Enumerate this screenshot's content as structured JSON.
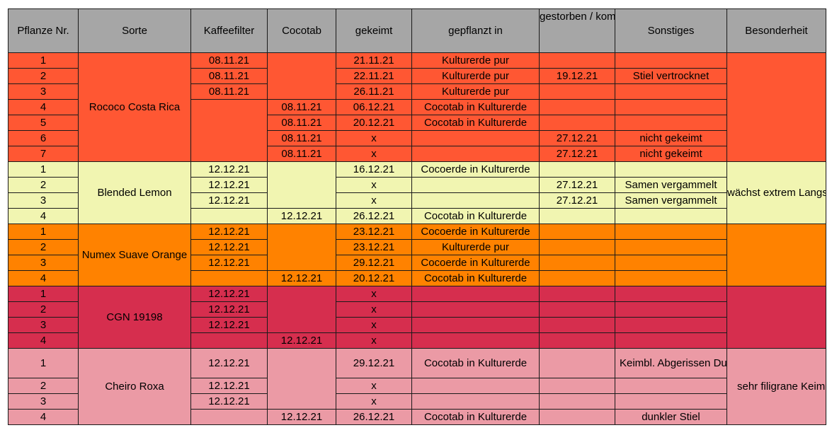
{
  "headers": {
    "nr": "Pflanze Nr.",
    "sorte": "Sorte",
    "kaffeefilter": "Kaffeefilter",
    "cocotab": "Cocotab",
    "gekeimt": "gekeimt",
    "gepflanzt": "gepflanzt in",
    "gestorben": "gestorben / kompostiert",
    "sonstiges": "Sonstiges",
    "besonderheit": "Besonderheit"
  },
  "groups": [
    {
      "sorte": "Rococo Costa Rica",
      "color": "#ff5733",
      "besonderheit": "",
      "rows": [
        {
          "nr": "1",
          "kaffeefilter": "08.11.21",
          "cocotab": "",
          "gekeimt": "21.11.21",
          "gepflanzt": "Kulturerde pur",
          "gestorben": "",
          "sonstiges": ""
        },
        {
          "nr": "2",
          "kaffeefilter": "08.11.21",
          "cocotab": "",
          "gekeimt": "22.11.21",
          "gepflanzt": "Kulturerde pur",
          "gestorben": "19.12.21",
          "sonstiges": "Stiel vertrocknet"
        },
        {
          "nr": "3",
          "kaffeefilter": "08.11.21",
          "cocotab": "",
          "gekeimt": "26.11.21",
          "gepflanzt": "Kulturerde pur",
          "gestorben": "",
          "sonstiges": ""
        },
        {
          "nr": "4",
          "kaffeefilter": "",
          "cocotab": "08.11.21",
          "gekeimt": "06.12.21",
          "gepflanzt": "Cocotab in Kulturerde",
          "gestorben": "",
          "sonstiges": ""
        },
        {
          "nr": "5",
          "kaffeefilter": "",
          "cocotab": "08.11.21",
          "gekeimt": "20.12.21",
          "gepflanzt": "Cocotab in Kulturerde",
          "gestorben": "",
          "sonstiges": ""
        },
        {
          "nr": "6",
          "kaffeefilter": "",
          "cocotab": "08.11.21",
          "gekeimt": "x",
          "gepflanzt": "",
          "gestorben": "27.12.21",
          "sonstiges": "nicht gekeimt"
        },
        {
          "nr": "7",
          "kaffeefilter": "",
          "cocotab": "08.11.21",
          "gekeimt": "x",
          "gepflanzt": "",
          "gestorben": "27.12.21",
          "sonstiges": "nicht gekeimt"
        }
      ]
    },
    {
      "sorte": "Blended Lemon",
      "color": "#f1f5b1",
      "besonderheit": "wächst extrem Langstielig",
      "rows": [
        {
          "nr": "1",
          "kaffeefilter": "12.12.21",
          "cocotab": "",
          "gekeimt": "16.12.21",
          "gepflanzt": "Cocoerde in Kulturerde",
          "gestorben": "",
          "sonstiges": ""
        },
        {
          "nr": "2",
          "kaffeefilter": "12.12.21",
          "cocotab": "",
          "gekeimt": "x",
          "gepflanzt": "",
          "gestorben": "27.12.21",
          "sonstiges": "Samen vergammelt"
        },
        {
          "nr": "3",
          "kaffeefilter": "12.12.21",
          "cocotab": "",
          "gekeimt": "x",
          "gepflanzt": "",
          "gestorben": "27.12.21",
          "sonstiges": "Samen vergammelt"
        },
        {
          "nr": "4",
          "kaffeefilter": "",
          "cocotab": "12.12.21",
          "gekeimt": "26.12.21",
          "gepflanzt": "Cocotab in Kulturerde",
          "gestorben": "",
          "sonstiges": ""
        }
      ]
    },
    {
      "sorte": "Numex Suave Orange",
      "color": "#ff8200",
      "besonderheit": "",
      "rows": [
        {
          "nr": "1",
          "kaffeefilter": "12.12.21",
          "cocotab": "",
          "gekeimt": "23.12.21",
          "gepflanzt": "Cocoerde in Kulturerde",
          "gestorben": "",
          "sonstiges": ""
        },
        {
          "nr": "2",
          "kaffeefilter": "12.12.21",
          "cocotab": "",
          "gekeimt": "23.12.21",
          "gepflanzt": "Kulturerde pur",
          "gestorben": "",
          "sonstiges": ""
        },
        {
          "nr": "3",
          "kaffeefilter": "12.12.21",
          "cocotab": "",
          "gekeimt": "29.12.21",
          "gepflanzt": "Cocoerde in Kulturerde",
          "gestorben": "",
          "sonstiges": ""
        },
        {
          "nr": "4",
          "kaffeefilter": "",
          "cocotab": "12.12.21",
          "gekeimt": "20.12.21",
          "gepflanzt": "Cocotab in Kulturerde",
          "gestorben": "",
          "sonstiges": ""
        }
      ]
    },
    {
      "sorte": "CGN 19198",
      "color": "#d62e4e",
      "besonderheit": "",
      "rows": [
        {
          "nr": "1",
          "kaffeefilter": "12.12.21",
          "cocotab": "",
          "gekeimt": "x",
          "gepflanzt": "",
          "gestorben": "",
          "sonstiges": ""
        },
        {
          "nr": "2",
          "kaffeefilter": "12.12.21",
          "cocotab": "",
          "gekeimt": "x",
          "gepflanzt": "",
          "gestorben": "",
          "sonstiges": ""
        },
        {
          "nr": "3",
          "kaffeefilter": "12.12.21",
          "cocotab": "",
          "gekeimt": "x",
          "gepflanzt": "",
          "gestorben": "",
          "sonstiges": ""
        },
        {
          "nr": "4",
          "kaffeefilter": "",
          "cocotab": "12.12.21",
          "gekeimt": "x",
          "gepflanzt": "",
          "gestorben": "",
          "sonstiges": ""
        }
      ]
    },
    {
      "sorte": "Cheiro Roxa",
      "color": "#eb9aa5",
      "besonderheit": "sehr filigrane Keimlinge",
      "rows": [
        {
          "nr": "1",
          "kaffeefilter": "12.12.21",
          "cocotab": "",
          "gekeimt": "29.12.21",
          "gepflanzt": "Cocotab in Kulturerde",
          "gestorben": "",
          "sonstiges": "Keimbl. Abgerissen Dunkler Stiel"
        },
        {
          "nr": "2",
          "kaffeefilter": "12.12.21",
          "cocotab": "",
          "gekeimt": "x",
          "gepflanzt": "",
          "gestorben": "",
          "sonstiges": ""
        },
        {
          "nr": "3",
          "kaffeefilter": "12.12.21",
          "cocotab": "",
          "gekeimt": "x",
          "gepflanzt": "",
          "gestorben": "",
          "sonstiges": ""
        },
        {
          "nr": "4",
          "kaffeefilter": "",
          "cocotab": "12.12.21",
          "gekeimt": "26.12.21",
          "gepflanzt": "Cocotab in Kulturerde",
          "gestorben": "",
          "sonstiges": "dunkler Stiel"
        }
      ]
    }
  ]
}
